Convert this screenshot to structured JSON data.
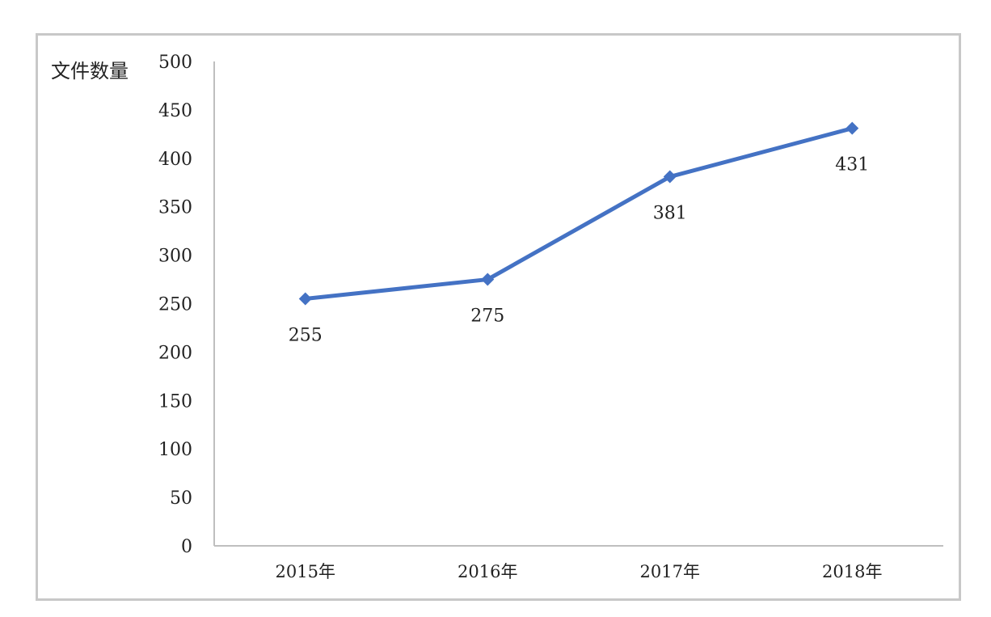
{
  "chart_data": {
    "type": "line",
    "title": "",
    "xlabel": "",
    "ylabel": "文件数量",
    "categories": [
      "2015年",
      "2016年",
      "2017年",
      "2018年"
    ],
    "series": [
      {
        "values": [
          255,
          275,
          381,
          431
        ]
      }
    ],
    "data_labels": [
      "255",
      "275",
      "381",
      "431"
    ],
    "ylim": [
      0,
      500
    ],
    "y_ticks": [
      "0",
      "50",
      "100",
      "150",
      "200",
      "250",
      "300",
      "350",
      "400",
      "450",
      "500"
    ],
    "grid": false,
    "legend": "none",
    "marker": "diamond",
    "line_color": "#4472c4",
    "axis_color": "#bfbfbf"
  }
}
